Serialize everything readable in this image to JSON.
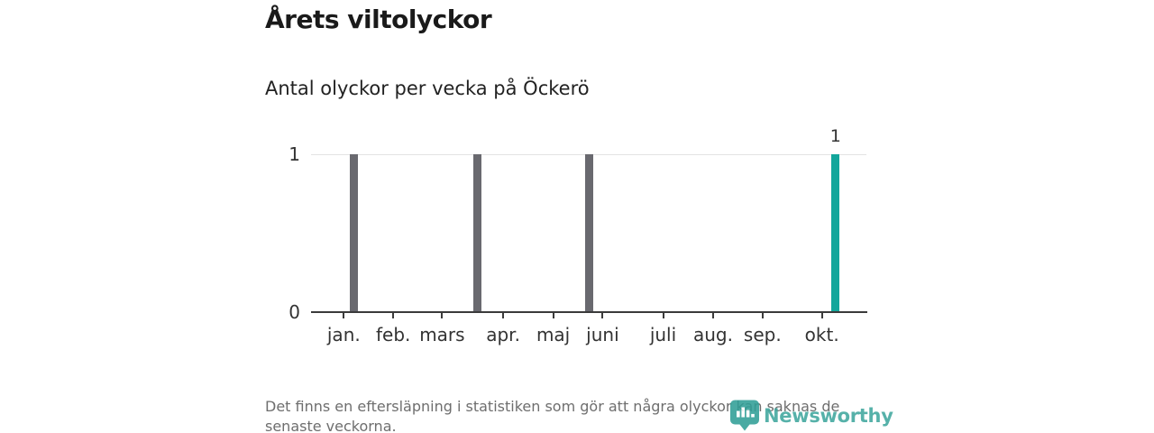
{
  "header": {
    "title": "Årets viltolyckor",
    "subtitle": "Antal olyckor per vecka på Öckerö"
  },
  "chart_data": {
    "type": "bar",
    "title": "Årets viltolyckor",
    "subtitle": "Antal olyckor per vecka på Öckerö",
    "xlabel": "",
    "ylabel": "",
    "ylim": [
      0,
      1
    ],
    "grid": "horizontal line at y=1 only",
    "legend": "none",
    "weeks_total": 45,
    "yticks": [
      {
        "value": 1,
        "label": "1"
      },
      {
        "value": 0,
        "label": "0"
      }
    ],
    "series": [
      {
        "name": "Olyckor per vecka",
        "points": [
          {
            "week": 4,
            "value": 1,
            "color_key": "past"
          },
          {
            "week": 14,
            "value": 1,
            "color_key": "past"
          },
          {
            "week": 23,
            "value": 1,
            "color_key": "past"
          },
          {
            "week": 43,
            "value": 1,
            "color_key": "latest",
            "data_label": "1"
          }
        ],
        "note": "all other weeks have value 0"
      }
    ],
    "month_ticks": [
      {
        "label": "jan.",
        "pos": 0.059
      },
      {
        "label": "feb.",
        "pos": 0.148
      },
      {
        "label": "mars",
        "pos": 0.236
      },
      {
        "label": "apr.",
        "pos": 0.346
      },
      {
        "label": "maj",
        "pos": 0.436
      },
      {
        "label": "juni",
        "pos": 0.525
      },
      {
        "label": "juli",
        "pos": 0.634
      },
      {
        "label": "aug.",
        "pos": 0.724
      },
      {
        "label": "sep.",
        "pos": 0.813
      },
      {
        "label": "okt.",
        "pos": 0.92
      }
    ],
    "colors": {
      "past": "#69696f",
      "latest": "#12a69b",
      "gridline": "#e3e3e3",
      "axis": "#3b3b3b"
    }
  },
  "footer": {
    "note_line1": "Det finns en eftersläpning i statistiken som gör att några olyckor kan saknas de",
    "note_line2": "senaste veckorna.",
    "logo_text": "Newsworthy",
    "logo_color": "#3ea69d"
  }
}
